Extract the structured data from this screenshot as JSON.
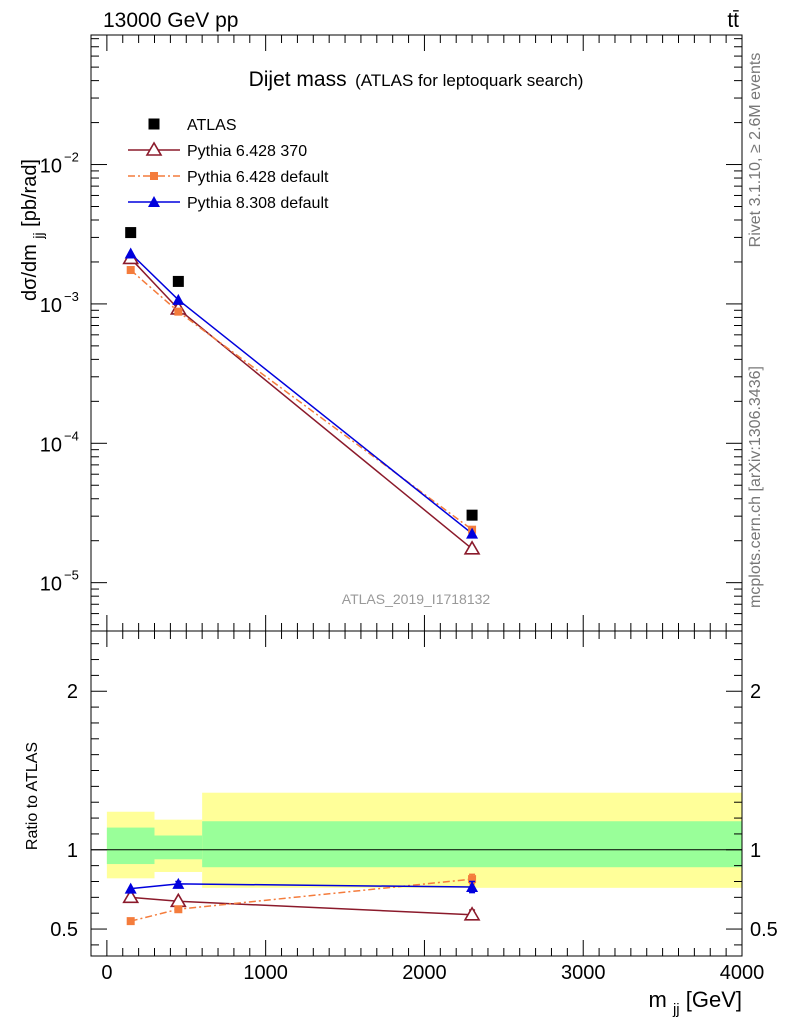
{
  "header": {
    "left": "13000 GeV pp",
    "right": "tt̄"
  },
  "side_labels": {
    "rivet": "Rivet 3.1.10, ≥ 2.6M events",
    "mcplots": "mcplots.cern.ch [arXiv:1306.3436]"
  },
  "colors": {
    "atlas": "#000000",
    "pythia6_370": "#8b1a2b",
    "pythia6_default": "#f47c3c",
    "pythia8_default": "#0000dd",
    "band_inner": "#99ff99",
    "band_outer": "#ffff99"
  },
  "chart_data": [
    {
      "type": "scatter",
      "title": "Dijet mass",
      "subtitle": "(ATLAS for leptoquark search)",
      "ylabel": "dσ/dm",
      "ylabel_sub": "jj",
      "ylabel_unit": " [pb/rad]",
      "watermark": "ATLAS_2019_I1718132",
      "yscale": "log",
      "xlim": [
        -100,
        4000
      ],
      "ylim": [
        4.5e-06,
        0.085
      ],
      "y_ticks": [
        {
          "value": 1e-05,
          "mant": "10",
          "exp": "−5"
        },
        {
          "value": 0.0001,
          "mant": "10",
          "exp": "−4"
        },
        {
          "value": 0.001,
          "mant": "10",
          "exp": "−3"
        },
        {
          "value": 0.01,
          "mant": "10",
          "exp": "−2"
        }
      ],
      "legend_position": "top-left",
      "series": [
        {
          "name": "ATLAS",
          "style": "data",
          "marker": "square",
          "x": [
            150,
            450,
            2300
          ],
          "y": [
            0.00325,
            0.00145,
            3.05e-05
          ]
        },
        {
          "name": "Pythia 6.428 370",
          "style": "solid",
          "marker": "open-triangle",
          "x": [
            150,
            450,
            2300
          ],
          "y": [
            0.00212,
            0.00092,
            1.75e-05
          ]
        },
        {
          "name": "Pythia 6.428 default",
          "style": "dashdot",
          "marker": "small-square",
          "x": [
            150,
            450,
            2300
          ],
          "y": [
            0.00175,
            0.00088,
            2.4e-05
          ]
        },
        {
          "name": "Pythia 8.308 default",
          "style": "solid",
          "marker": "filled-triangle",
          "x": [
            150,
            450,
            2300
          ],
          "y": [
            0.0023,
            0.00107,
            2.25e-05
          ]
        }
      ]
    },
    {
      "type": "scatter",
      "ylabel": "Ratio to ATLAS",
      "xlabel": "m",
      "xlabel_sub": "jj",
      "xlabel_unit": " [GeV]",
      "xlim": [
        -100,
        4000
      ],
      "ylim": [
        0.33,
        2.38
      ],
      "x_ticks": [
        0,
        1000,
        2000,
        3000,
        4000
      ],
      "x_tick_labels": [
        "0",
        "1000",
        "2000",
        "3000",
        "4000"
      ],
      "y_ticks": [
        0.5,
        1,
        2
      ],
      "y_tick_labels": [
        "0.5",
        "1",
        "2"
      ],
      "bands": [
        {
          "x0": 0,
          "x1": 300,
          "inner": [
            0.91,
            1.14
          ],
          "outer": [
            0.82,
            1.24
          ]
        },
        {
          "x0": 300,
          "x1": 600,
          "inner": [
            0.94,
            1.09
          ],
          "outer": [
            0.86,
            1.19
          ]
        },
        {
          "x0": 600,
          "x1": 4000,
          "inner": [
            0.89,
            1.18
          ],
          "outer": [
            0.76,
            1.36
          ]
        }
      ],
      "series": [
        {
          "name": "Pythia 6.428 370",
          "x": [
            150,
            450,
            2300
          ],
          "y": [
            0.7,
            0.675,
            0.59
          ],
          "err": [
            0,
            0.015,
            0.03
          ]
        },
        {
          "name": "Pythia 6.428 default",
          "x": [
            150,
            450,
            2300
          ],
          "y": [
            0.55,
            0.625,
            0.815
          ],
          "err": [
            0,
            0.01,
            0.03
          ]
        },
        {
          "name": "Pythia 8.308 default",
          "x": [
            150,
            450,
            2300
          ],
          "y": [
            0.755,
            0.785,
            0.765
          ],
          "err": [
            0,
            0.015,
            0.035
          ]
        }
      ]
    }
  ]
}
